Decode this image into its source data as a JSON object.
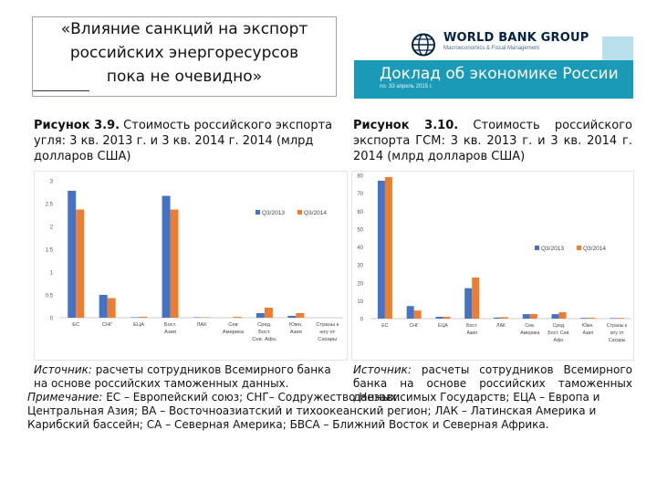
{
  "slide": {
    "title_line1": "«Влияние санкций на экспорт",
    "title_line2": "российских энергоресурсов",
    "title_line3": "пока не очевидно»"
  },
  "header": {
    "org_name": "WORLD BANK GROUP",
    "org_sub": "Macroeconomics & Fiscal Management",
    "report_title": "Доклад об экономике России",
    "issue": "no. 33 апрель 2015 г."
  },
  "left": {
    "fig_label": "Рисунок 3.9.",
    "fig_title": " Стоимость российского экспорта угля: 3 кв. 2013 г. и 3 кв. 2014 г. 2014 (млрд долларов США)",
    "source_label": "Источник:",
    "source_text": " расчеты сотрудников Всемирного банка на основе российских таможенных данных."
  },
  "right": {
    "fig_label": "Рисунок 3.10.",
    "fig_title": " Стоимость российского экспорта ГСМ: 3 кв. 2013 г. и 3 кв. 2014 г. 2014 (млрд долларов США)",
    "source_label": "Источник:",
    "source_text": " расчеты сотрудников Всемирного банка на основе российских таможенных данных."
  },
  "note": {
    "label": "Примечание:",
    "text": " ЕС – Европейский союз; СНГ– Содружество Независимых Государств; ЕЦА – Европа и Центральная Азия; ВА – Восточноазиатский и тихоокеанский регион; ЛАК – Латинская Америка и Карибский бассейн; СА – Северная Америка; БВСА – Ближний Восток и Северная Африка."
  },
  "colors": {
    "q3_2013": "#4472c4",
    "q3_2014": "#ed7d31",
    "grid": "#e0e0e0",
    "band": "#1a9ab6"
  },
  "chart_data": [
    {
      "type": "bar",
      "title": "",
      "categories": [
        [
          "ЕС"
        ],
        [
          "СНГ"
        ],
        [
          "ЕЦА"
        ],
        [
          "Бост.",
          "Азия"
        ],
        [
          "ЛАК"
        ],
        [
          "Сев",
          "Америка"
        ],
        [
          "Сред.",
          "Бост.",
          "Сев. Афо."
        ],
        [
          "Южн.",
          "Азия"
        ],
        [
          "Страны к",
          "югу от",
          "Сахары"
        ]
      ],
      "series": [
        {
          "name": "Q3/2013",
          "values": [
            2.78,
            0.5,
            0.01,
            2.67,
            0.01,
            0.0,
            0.1,
            0.04,
            0.0
          ]
        },
        {
          "name": "Q3/2014",
          "values": [
            2.37,
            0.43,
            0.02,
            2.37,
            0.01,
            0.02,
            0.22,
            0.1,
            0.0
          ]
        }
      ],
      "yticks": [
        "0",
        "0.5",
        "1",
        "1.5",
        "2",
        "2.5",
        "3"
      ],
      "ylim": [
        0,
        3
      ],
      "legend": "top-right",
      "grid": false
    },
    {
      "type": "bar",
      "title": "",
      "categories": [
        [
          "ЕС"
        ],
        [
          "СНГ"
        ],
        [
          "ЕЦА"
        ],
        [
          "Бост.",
          "Азия"
        ],
        [
          "ЛАК"
        ],
        [
          "Сев.",
          "Америка"
        ],
        [
          "Сред.",
          "Бост. Сев.",
          "Афо."
        ],
        [
          "Южн.",
          "Азия"
        ],
        [
          "Страны к",
          "югу от",
          "Сахары"
        ]
      ],
      "series": [
        {
          "name": "Q3/2013",
          "values": [
            77,
            7,
            1,
            17,
            0.6,
            2.5,
            2.5,
            0.4,
            0.3
          ]
        },
        {
          "name": "Q3/2014",
          "values": [
            79,
            4.5,
            1,
            23,
            0.8,
            2.6,
            3.6,
            0.5,
            0.4
          ]
        }
      ],
      "yticks": [
        "0",
        "10",
        "20",
        "30",
        "40",
        "50",
        "60",
        "70",
        "80"
      ],
      "ylim": [
        0,
        80
      ],
      "legend": "center-right",
      "grid": false
    }
  ]
}
